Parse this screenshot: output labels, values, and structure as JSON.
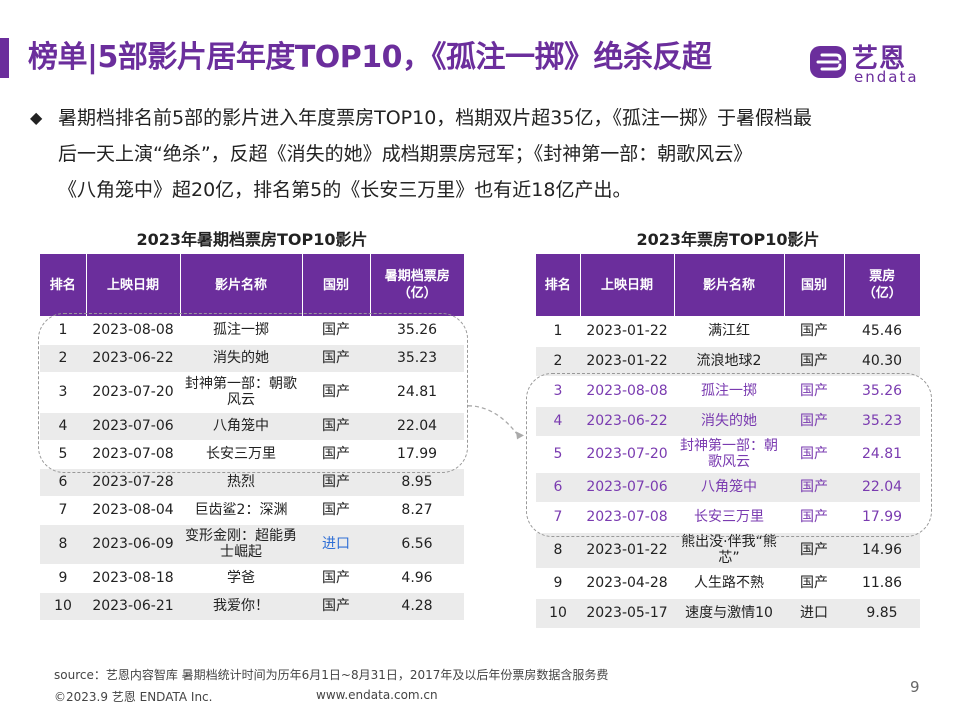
{
  "header": {
    "title": "榜单|5部影片居年度TOP10，《孤注一掷》绝杀反超",
    "logo_cn": "艺恩",
    "logo_en": "endata"
  },
  "bullet": {
    "icon": "diamond-bullet-icon",
    "line1": "暑期档排名前5部的影片进入年度票房TOP10，档期双片超35亿，《孤注一掷》于暑假档最",
    "line2": "后一天上演“绝杀”，反超《消失的她》成档期票房冠军；《封神第一部：朝歌风云》",
    "line3": "《八角笼中》超20亿，排名第5的《长安三万里》也有近18亿产出。"
  },
  "left_table": {
    "title": "2023年暑期档票房TOP10影片",
    "headers": [
      "排名",
      "上映日期",
      "影片名称",
      "国别",
      "暑期档票房\n（亿）"
    ],
    "rows": [
      [
        "1",
        "2023-08-08",
        "孤注一掷",
        "国产",
        "35.26"
      ],
      [
        "2",
        "2023-06-22",
        "消失的她",
        "国产",
        "35.23"
      ],
      [
        "3",
        "2023-07-20",
        "封神第一部：朝歌风云",
        "国产",
        "24.81"
      ],
      [
        "4",
        "2023-07-06",
        "八角笼中",
        "国产",
        "22.04"
      ],
      [
        "5",
        "2023-07-08",
        "长安三万里",
        "国产",
        "17.99"
      ],
      [
        "6",
        "2023-07-28",
        "热烈",
        "国产",
        "8.95"
      ],
      [
        "7",
        "2023-08-04",
        "巨齿鲨2：深渊",
        "国产",
        "8.27"
      ],
      [
        "8",
        "2023-06-09",
        "变形金刚：超能勇士崛起",
        "进口",
        "6.56"
      ],
      [
        "9",
        "2023-08-18",
        "学爸",
        "国产",
        "4.96"
      ],
      [
        "10",
        "2023-06-21",
        "我爱你！",
        "国产",
        "4.28"
      ]
    ]
  },
  "right_table": {
    "title": "2023年票房TOP10影片",
    "headers": [
      "排名",
      "上映日期",
      "影片名称",
      "国别",
      "票房\n（亿）"
    ],
    "rows": [
      [
        "1",
        "2023-01-22",
        "满江红",
        "国产",
        "45.46"
      ],
      [
        "2",
        "2023-01-22",
        "流浪地球2",
        "国产",
        "40.30"
      ],
      [
        "3",
        "2023-08-08",
        "孤注一掷",
        "国产",
        "35.26"
      ],
      [
        "4",
        "2023-06-22",
        "消失的她",
        "国产",
        "35.23"
      ],
      [
        "5",
        "2023-07-20",
        "封神第一部：朝歌风云",
        "国产",
        "24.81"
      ],
      [
        "6",
        "2023-07-06",
        "八角笼中",
        "国产",
        "22.04"
      ],
      [
        "7",
        "2023-07-08",
        "长安三万里",
        "国产",
        "17.99"
      ],
      [
        "8",
        "2023-01-22",
        "熊出没·伴我“熊芯”",
        "国产",
        "14.96"
      ],
      [
        "9",
        "2023-04-28",
        "人生路不熟",
        "国产",
        "11.86"
      ],
      [
        "10",
        "2023-05-17",
        "速度与激情10",
        "进口",
        "9.85"
      ]
    ]
  },
  "footer": {
    "source": "source：艺恩内容智库    暑期档统计时间为历年6月1日~8月31日，2017年及以后年份票房数据含服务费",
    "copyright": "©2023.9 艺恩 ENDATA Inc.",
    "website": "www.endata.com.cn",
    "page": "9"
  },
  "colors": {
    "accent": "#6b2e9c",
    "highlight_text": "#7a3bb0",
    "import_text": "#2f6fd6",
    "stripe": "#ebebeb"
  }
}
